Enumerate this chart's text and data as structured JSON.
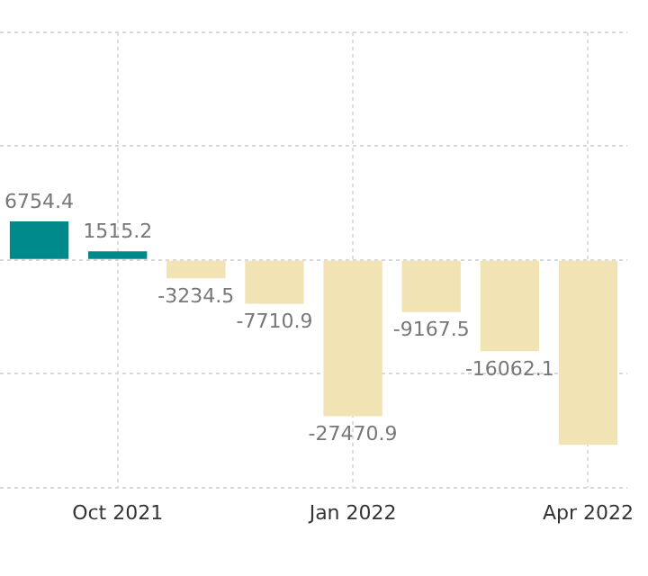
{
  "chart_data": {
    "type": "bar",
    "categories": [
      null,
      "Oct 2021",
      null,
      null,
      "Jan 2022",
      null,
      null,
      "Apr 2022"
    ],
    "values": [
      6754.4,
      1515.2,
      -3234.5,
      -7710.9,
      -27470.9,
      -9167.5,
      -16062.1,
      -32500
    ],
    "colors": [
      "#00898a",
      "#00898a",
      "#f2e3b5",
      "#f2e3b5",
      "#f2e3b5",
      "#f2e3b5",
      "#f2e3b5",
      "#f2e3b5"
    ],
    "value_labels": [
      "6754.4",
      "1515.2",
      "-3234.5",
      "-7710.9",
      "-27470.9",
      "-9167.5",
      "-16062.1",
      null
    ],
    "ylim": [
      -40000,
      40000
    ],
    "yticks": [
      {
        "value": -40000,
        "label": null
      },
      {
        "value": -20000,
        "label": null
      },
      {
        "value": 0,
        "label": null
      },
      {
        "value": 20000,
        "label": null
      },
      {
        "value": 40000,
        "label": null
      }
    ],
    "tick_labels": "x",
    "grid": true,
    "legend": false
  }
}
